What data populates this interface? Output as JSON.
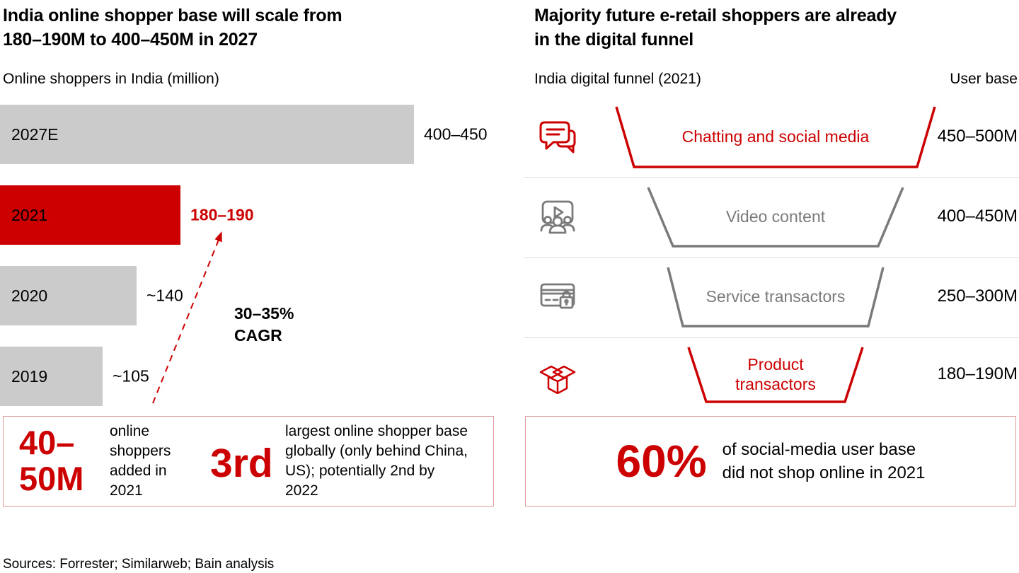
{
  "colors": {
    "accent_red": "#cc0000",
    "bar_gray": "#cbcbcb",
    "funnel_gray": "#7a7a7a",
    "divider_gray": "#dcdcdc",
    "callout_border": "#dd9b9b"
  },
  "left_panel": {
    "title_lines": [
      "India online shopper base will scale from",
      "180–190M to 400–450M in 2027"
    ],
    "subtitle": "Online shoppers in India (million)",
    "cagr_lines": [
      "30–35%",
      "CAGR"
    ],
    "callout": {
      "stat1_lines": [
        "40–",
        "50M"
      ],
      "stat1_desc": "online shoppers added in 2021",
      "stat2": "3rd",
      "stat2_desc": "largest online shopper base globally (only behind China, US); potentially 2nd by 2022"
    }
  },
  "right_panel": {
    "title_lines": [
      "Majority future e-retail shoppers are already",
      "in the digital funnel"
    ],
    "subtitle": "India digital funnel (2021)",
    "user_base_label": "User base",
    "callout": {
      "stat": "60%",
      "desc_lines": [
        "of social-media user base",
        "did not shop online in 2021"
      ]
    }
  },
  "footer": "Sources: Forrester; Similarweb; Bain analysis",
  "chart_data": [
    {
      "type": "bar",
      "orientation": "horizontal",
      "title": "Online shoppers in India (million)",
      "unit": "million online shoppers",
      "categories": [
        "2027E",
        "2021",
        "2020",
        "2019"
      ],
      "values": [
        425,
        185,
        140,
        105
      ],
      "value_labels": [
        "400–450",
        "180–190",
        "~140",
        "~105"
      ],
      "highlight_category": "2021",
      "highlight_color": "#cc0000",
      "bar_color": "#cbcbcb",
      "xlim": [
        0,
        425
      ],
      "grid": false,
      "annotation": "30–35% CAGR"
    },
    {
      "type": "funnel",
      "title": "India digital funnel (2021)",
      "value_header": "User base",
      "levels": [
        {
          "label": "Chatting and social media",
          "value": "450–500M",
          "emphasis": "red",
          "icon": "chat-bubbles-icon"
        },
        {
          "label": "Video content",
          "value": "400–450M",
          "emphasis": "gray",
          "icon": "video-audience-icon"
        },
        {
          "label": "Service transactors",
          "value": "250–300M",
          "emphasis": "gray",
          "icon": "card-lock-icon"
        },
        {
          "label": "Product transactors",
          "value": "180–190M",
          "emphasis": "red",
          "icon": "open-box-icon"
        }
      ]
    }
  ]
}
